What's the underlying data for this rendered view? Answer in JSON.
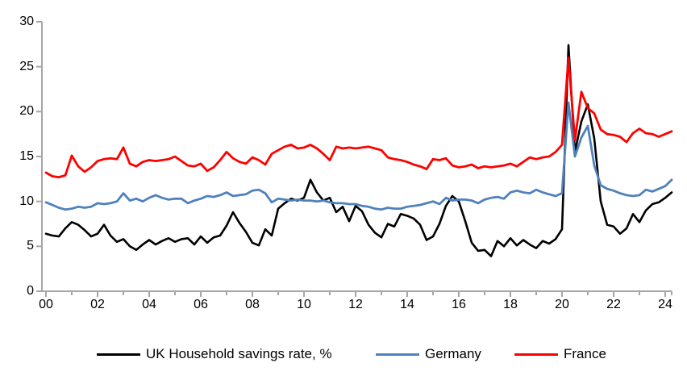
{
  "chart_data": {
    "type": "line",
    "title": "",
    "x_start_year": 2000,
    "points_per_year": 4,
    "x_tick_labels": [
      "00",
      "02",
      "04",
      "06",
      "08",
      "10",
      "12",
      "14",
      "16",
      "18",
      "20",
      "22",
      "24"
    ],
    "y_tick_labels": [
      "0",
      "5",
      "10",
      "15",
      "20",
      "25",
      "30"
    ],
    "ylim": [
      0,
      30
    ],
    "grid": "off",
    "legend_position": "bottom",
    "axis_color": "#A6A6A6",
    "series": [
      {
        "name": "UK Household savings rate, %",
        "color": "#000000",
        "values": [
          6.4,
          6.2,
          6.1,
          7.0,
          7.7,
          7.4,
          6.8,
          6.1,
          6.4,
          7.4,
          6.2,
          5.5,
          5.8,
          5.0,
          4.6,
          5.2,
          5.7,
          5.2,
          5.6,
          5.9,
          5.5,
          5.8,
          5.9,
          5.2,
          6.1,
          5.4,
          6.0,
          6.2,
          7.3,
          8.8,
          7.6,
          6.6,
          5.4,
          5.1,
          6.9,
          6.2,
          9.2,
          9.8,
          10.3,
          10.1,
          10.4,
          12.4,
          11.0,
          10.1,
          10.4,
          8.8,
          9.4,
          7.8,
          9.5,
          8.9,
          7.4,
          6.5,
          6.0,
          7.5,
          7.2,
          8.6,
          8.4,
          8.1,
          7.4,
          5.7,
          6.1,
          7.5,
          9.5,
          10.6,
          10.0,
          7.8,
          5.4,
          4.5,
          4.6,
          3.9,
          5.6,
          5.0,
          5.9,
          5.1,
          5.7,
          5.2,
          4.8,
          5.6,
          5.3,
          5.8,
          6.9,
          27.4,
          15.5,
          18.9,
          20.8,
          17.0,
          10.0,
          7.4,
          7.2,
          6.4,
          7.0,
          8.6,
          7.7,
          9.0,
          9.7,
          9.9,
          10.4,
          11.0
        ]
      },
      {
        "name": "Germany",
        "color": "#4F81BD",
        "values": [
          9.9,
          9.6,
          9.3,
          9.1,
          9.2,
          9.4,
          9.3,
          9.4,
          9.8,
          9.7,
          9.8,
          10.0,
          10.9,
          10.1,
          10.3,
          10.0,
          10.4,
          10.7,
          10.4,
          10.2,
          10.3,
          10.3,
          9.8,
          10.1,
          10.3,
          10.6,
          10.5,
          10.7,
          11.0,
          10.6,
          10.7,
          10.8,
          11.2,
          11.3,
          10.9,
          9.9,
          10.3,
          10.2,
          10.1,
          10.2,
          10.1,
          10.1,
          10.0,
          10.1,
          9.9,
          9.8,
          9.8,
          9.7,
          9.7,
          9.5,
          9.4,
          9.2,
          9.1,
          9.3,
          9.2,
          9.2,
          9.4,
          9.5,
          9.6,
          9.8,
          10.0,
          9.7,
          10.4,
          10.1,
          10.2,
          10.2,
          10.1,
          9.8,
          10.2,
          10.4,
          10.5,
          10.3,
          11.0,
          11.2,
          11.0,
          10.9,
          11.3,
          11.0,
          10.8,
          10.6,
          10.9,
          21.0,
          15.0,
          17.1,
          18.4,
          14.0,
          11.8,
          11.4,
          11.2,
          10.9,
          10.7,
          10.6,
          10.7,
          11.3,
          11.1,
          11.4,
          11.7,
          12.4
        ]
      },
      {
        "name": "France",
        "color": "#FF0000",
        "values": [
          13.2,
          12.8,
          12.7,
          12.9,
          15.1,
          13.9,
          13.3,
          13.8,
          14.5,
          14.7,
          14.8,
          14.7,
          16.0,
          14.2,
          13.9,
          14.4,
          14.6,
          14.5,
          14.6,
          14.7,
          15.0,
          14.5,
          14.0,
          13.9,
          14.2,
          13.4,
          13.8,
          14.6,
          15.5,
          14.8,
          14.4,
          14.2,
          14.9,
          14.6,
          14.1,
          15.3,
          15.7,
          16.1,
          16.3,
          15.9,
          16.0,
          16.3,
          15.9,
          15.3,
          14.6,
          16.1,
          15.9,
          16.0,
          15.9,
          16.0,
          16.1,
          15.9,
          15.7,
          14.9,
          14.7,
          14.6,
          14.4,
          14.1,
          13.9,
          13.6,
          14.7,
          14.6,
          14.8,
          14.0,
          13.8,
          13.9,
          14.1,
          13.7,
          13.9,
          13.8,
          13.9,
          14.0,
          14.2,
          13.9,
          14.4,
          14.9,
          14.7,
          14.9,
          15.0,
          15.5,
          16.3,
          26.0,
          16.8,
          22.2,
          20.4,
          19.8,
          18.0,
          17.5,
          17.4,
          17.2,
          16.6,
          17.6,
          18.1,
          17.6,
          17.5,
          17.2,
          17.5,
          17.8
        ]
      }
    ]
  },
  "legend": [
    {
      "label": "UK Household savings rate, %",
      "color": "#000000"
    },
    {
      "label": "Germany",
      "color": "#4F81BD"
    },
    {
      "label": "France",
      "color": "#FF0000"
    }
  ]
}
